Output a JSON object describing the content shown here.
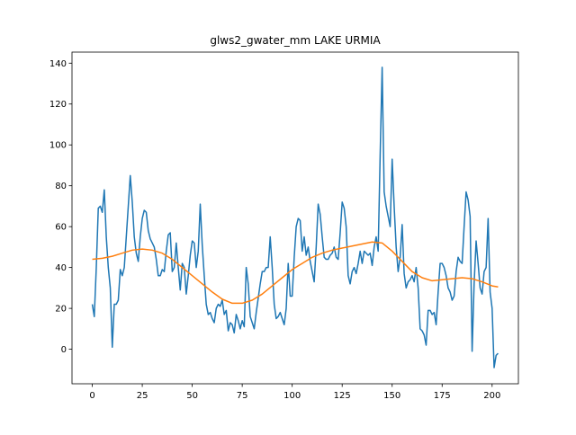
{
  "chart_data": {
    "type": "line",
    "title": "glws2_gwater_mm LAKE URMIA",
    "xlim": [
      -10.15,
      213.15
    ],
    "xticks": [
      0,
      25,
      50,
      75,
      100,
      125,
      150,
      175,
      200
    ],
    "ylim": [
      -16.9,
      145.4
    ],
    "yticks": [
      0,
      20,
      40,
      60,
      80,
      100,
      120,
      140
    ],
    "series": [
      {
        "color": "#1f77b4",
        "x": [
          0,
          1,
          2,
          3,
          4,
          5,
          6,
          7,
          8,
          9,
          10,
          11,
          12,
          13,
          14,
          15,
          16,
          17,
          18,
          19,
          20,
          21,
          22,
          23,
          24,
          25,
          26,
          27,
          28,
          29,
          30,
          31,
          32,
          33,
          34,
          35,
          36,
          37,
          38,
          39,
          40,
          41,
          42,
          43,
          44,
          45,
          46,
          47,
          48,
          49,
          50,
          51,
          52,
          53,
          54,
          55,
          56,
          57,
          58,
          59,
          60,
          61,
          62,
          63,
          64,
          65,
          66,
          67,
          68,
          69,
          70,
          71,
          72,
          73,
          74,
          75,
          76,
          77,
          78,
          79,
          80,
          81,
          82,
          83,
          84,
          85,
          86,
          87,
          88,
          89,
          90,
          91,
          92,
          93,
          94,
          95,
          96,
          97,
          98,
          99,
          100,
          101,
          102,
          103,
          104,
          105,
          106,
          107,
          108,
          109,
          110,
          111,
          112,
          113,
          114,
          115,
          116,
          117,
          118,
          119,
          120,
          121,
          122,
          123,
          124,
          125,
          126,
          127,
          128,
          129,
          130,
          131,
          132,
          133,
          134,
          135,
          136,
          137,
          138,
          139,
          140,
          141,
          142,
          143,
          144,
          145,
          146,
          147,
          148,
          149,
          150,
          151,
          152,
          153,
          154,
          155,
          156,
          157,
          158,
          159,
          160,
          161,
          162,
          163,
          164,
          165,
          166,
          167,
          168,
          169,
          170,
          171,
          172,
          173,
          174,
          175,
          176,
          177,
          178,
          179,
          180,
          181,
          182,
          183,
          184,
          185,
          186,
          187,
          188,
          189,
          190,
          191,
          192,
          193,
          194,
          195,
          196,
          197,
          198,
          199,
          200,
          201,
          202,
          203
        ],
        "values": [
          22,
          16,
          40,
          69,
          70,
          67,
          78,
          55,
          40,
          30,
          1,
          22,
          22,
          24,
          39,
          36,
          40,
          55,
          70,
          85,
          72,
          55,
          47,
          43,
          55,
          64,
          68,
          67,
          58,
          54,
          52,
          50,
          44,
          36,
          36,
          39,
          38,
          48,
          56,
          57,
          38,
          40,
          52,
          40,
          29,
          42,
          40,
          27,
          36,
          46,
          53,
          52,
          40,
          48,
          71,
          51,
          36,
          22,
          17,
          18,
          15,
          13,
          20,
          22,
          21,
          24,
          17,
          19,
          9,
          13,
          12,
          8,
          17,
          14,
          10,
          14,
          11,
          40,
          32,
          16,
          13,
          10,
          18,
          25,
          32,
          38,
          38,
          40,
          40,
          55,
          40,
          22,
          15,
          16,
          18,
          15,
          12,
          20,
          42,
          26,
          26,
          45,
          60,
          64,
          63,
          48,
          55,
          46,
          50,
          43,
          38,
          33,
          50,
          71,
          66,
          55,
          45,
          44,
          44,
          46,
          47,
          50,
          45,
          44,
          57,
          72,
          69,
          60,
          36,
          32,
          38,
          40,
          37,
          42,
          48,
          42,
          48,
          47,
          46,
          47,
          41,
          50,
          55,
          48,
          95,
          138,
          77,
          70,
          65,
          60,
          93,
          70,
          50,
          38,
          45,
          61,
          37,
          30,
          33,
          34,
          36,
          33,
          40,
          30,
          10,
          9,
          7,
          2,
          19,
          19,
          17,
          18,
          12,
          28,
          42,
          42,
          40,
          36,
          30,
          28,
          24,
          26,
          38,
          45,
          43,
          42,
          60,
          77,
          73,
          65,
          -1,
          32,
          53,
          42,
          30,
          27,
          38,
          40,
          64,
          28,
          20,
          -9,
          -3,
          -2
        ]
      },
      {
        "color": "#ff7f0e",
        "x": [
          0,
          5,
          10,
          15,
          20,
          25,
          30,
          35,
          40,
          45,
          50,
          55,
          60,
          65,
          70,
          75,
          80,
          85,
          90,
          95,
          100,
          105,
          110,
          115,
          120,
          125,
          130,
          135,
          140,
          145,
          150,
          155,
          160,
          165,
          170,
          175,
          180,
          185,
          190,
          195,
          200,
          203
        ],
        "values": [
          44,
          44.5,
          45.5,
          47,
          48.5,
          49,
          48.5,
          47,
          44,
          40,
          36,
          32,
          28,
          24.5,
          22.5,
          22.5,
          24,
          27,
          31,
          35,
          39,
          42,
          45,
          47,
          48.5,
          49.5,
          50.5,
          51.5,
          52.5,
          52,
          48,
          43,
          38,
          35,
          33.5,
          34,
          34.5,
          35,
          34.5,
          33,
          31,
          30.5
        ]
      }
    ]
  }
}
